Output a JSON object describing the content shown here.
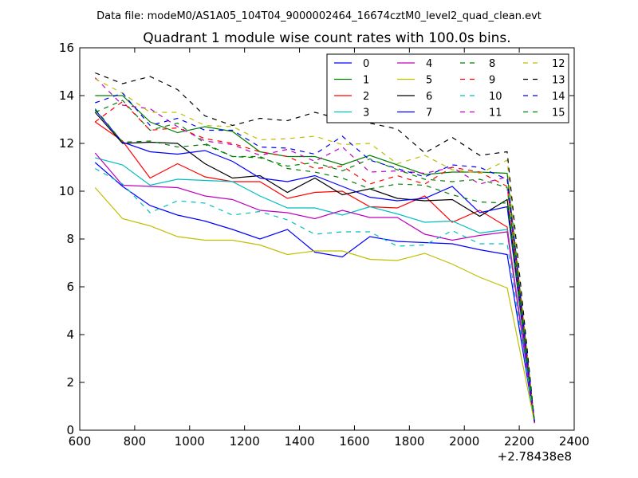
{
  "chart_data": {
    "type": "line",
    "suptitle": "Data file: modeM0/AS1A05_104T04_9000002464_16674cztM0_level2_quad_clean.evt",
    "title": "Quadrant 1 module wise count rates with 100.0s bins.",
    "xlabel": "",
    "ylabel": "",
    "x_offset_label": "+2.78438e8",
    "xlim": [
      600,
      2400
    ],
    "ylim": [
      0,
      16
    ],
    "x_ticks": [
      600,
      800,
      1000,
      1200,
      1400,
      1600,
      1800,
      2000,
      2200,
      2400
    ],
    "y_ticks": [
      0,
      2,
      4,
      6,
      8,
      10,
      12,
      14,
      16
    ],
    "legend_position": "top-right",
    "legend_columns": 4,
    "x": [
      656,
      756,
      856,
      956,
      1056,
      1156,
      1256,
      1356,
      1456,
      1556,
      1656,
      1756,
      1856,
      1956,
      2056,
      2156,
      2256
    ],
    "series": [
      {
        "name": "0",
        "color": "#0000ff",
        "style": "solid",
        "values": [
          11.2,
          10.2,
          9.4,
          9.0,
          8.75,
          8.4,
          8.0,
          8.4,
          7.45,
          7.25,
          8.1,
          7.9,
          7.85,
          7.8,
          7.55,
          7.35,
          0.3
        ]
      },
      {
        "name": "1",
        "color": "#008000",
        "style": "solid",
        "values": [
          14.0,
          14.0,
          12.9,
          12.45,
          12.7,
          12.5,
          11.65,
          11.45,
          11.45,
          11.1,
          11.5,
          11.1,
          10.7,
          10.8,
          10.8,
          10.75,
          0.3
        ]
      },
      {
        "name": "2",
        "color": "#ff0000",
        "style": "solid",
        "values": [
          12.9,
          12.1,
          10.55,
          11.15,
          10.6,
          10.4,
          10.4,
          9.7,
          9.95,
          10.0,
          9.35,
          9.3,
          9.8,
          8.7,
          9.2,
          8.5,
          0.3
        ]
      },
      {
        "name": "3",
        "color": "#00bfbf",
        "style": "solid",
        "values": [
          11.4,
          11.1,
          10.25,
          10.5,
          10.45,
          10.4,
          9.8,
          9.3,
          9.3,
          9.0,
          9.35,
          9.05,
          8.7,
          8.75,
          8.25,
          8.4,
          0.3
        ]
      },
      {
        "name": "4",
        "color": "#bf00bf",
        "style": "solid",
        "values": [
          11.6,
          10.25,
          10.2,
          10.15,
          9.8,
          9.65,
          9.2,
          9.1,
          8.85,
          9.2,
          8.9,
          8.9,
          8.2,
          7.95,
          8.15,
          8.3,
          0.3
        ]
      },
      {
        "name": "5",
        "color": "#bfbf00",
        "style": "solid",
        "values": [
          10.15,
          8.85,
          8.55,
          8.1,
          7.95,
          7.95,
          7.75,
          7.35,
          7.5,
          7.5,
          7.15,
          7.1,
          7.4,
          6.95,
          6.4,
          5.95,
          0.3
        ]
      },
      {
        "name": "6",
        "color": "#000000",
        "style": "solid",
        "values": [
          13.3,
          12.0,
          12.05,
          12.0,
          11.15,
          10.55,
          10.65,
          9.95,
          10.55,
          9.85,
          10.1,
          9.7,
          9.6,
          9.65,
          8.95,
          9.65,
          0.3
        ]
      },
      {
        "name": "7",
        "color": "#0000ff",
        "style": "solid",
        "values": [
          13.4,
          12.05,
          11.65,
          11.55,
          11.7,
          11.25,
          10.55,
          10.4,
          10.65,
          10.2,
          9.75,
          9.6,
          9.7,
          10.2,
          9.1,
          9.35,
          0.3
        ]
      },
      {
        "name": "8",
        "color": "#008000",
        "style": "dashed",
        "values": [
          13.3,
          13.8,
          12.55,
          12.85,
          12.0,
          11.45,
          11.45,
          10.95,
          10.8,
          10.55,
          10.1,
          10.3,
          10.25,
          9.85,
          9.55,
          9.5,
          0.3
        ]
      },
      {
        "name": "9",
        "color": "#ff0000",
        "style": "dashed",
        "values": [
          12.9,
          13.75,
          12.55,
          12.65,
          12.2,
          12.0,
          11.65,
          11.45,
          10.95,
          11.05,
          10.3,
          10.65,
          10.3,
          11.0,
          10.8,
          10.2,
          0.3
        ]
      },
      {
        "name": "10",
        "color": "#00bfbf",
        "style": "dashed",
        "values": [
          10.95,
          10.3,
          9.1,
          9.6,
          9.5,
          9.0,
          9.15,
          8.8,
          8.2,
          8.3,
          8.3,
          7.7,
          7.75,
          8.35,
          7.8,
          7.8,
          0.3
        ]
      },
      {
        "name": "11",
        "color": "#bf00bf",
        "style": "dashed",
        "values": [
          14.75,
          13.6,
          13.45,
          12.7,
          12.1,
          11.95,
          11.5,
          11.75,
          11.25,
          11.85,
          10.8,
          10.85,
          10.75,
          11.0,
          10.3,
          10.6,
          0.3
        ]
      },
      {
        "name": "12",
        "color": "#bfbf00",
        "style": "dashed",
        "values": [
          14.7,
          14.1,
          13.3,
          13.3,
          12.75,
          12.7,
          12.15,
          12.2,
          12.3,
          11.95,
          12.0,
          11.15,
          11.5,
          10.9,
          10.75,
          11.3,
          0.3
        ]
      },
      {
        "name": "13",
        "color": "#000000",
        "style": "dashed",
        "values": [
          14.95,
          14.5,
          14.8,
          14.25,
          13.15,
          12.75,
          13.05,
          12.95,
          13.3,
          13.0,
          12.85,
          12.6,
          11.6,
          12.25,
          11.5,
          11.65,
          0.3
        ]
      },
      {
        "name": "14",
        "color": "#0000ff",
        "style": "dashed",
        "values": [
          13.7,
          14.1,
          12.75,
          13.05,
          12.55,
          12.55,
          11.85,
          11.8,
          11.55,
          12.3,
          11.3,
          10.95,
          10.6,
          11.1,
          11.0,
          10.5,
          0.3
        ]
      },
      {
        "name": "15",
        "color": "#008000",
        "style": "dashed",
        "values": [
          13.45,
          12.05,
          12.1,
          11.85,
          11.95,
          11.45,
          11.4,
          11.05,
          11.2,
          10.85,
          11.35,
          10.9,
          10.5,
          10.4,
          10.5,
          10.15,
          0.3
        ]
      }
    ]
  }
}
